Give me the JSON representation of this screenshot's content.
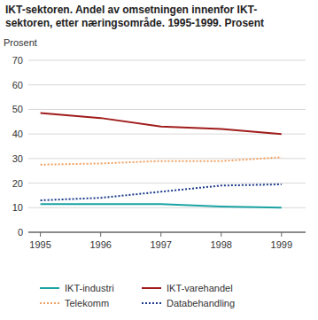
{
  "chart_data": {
    "type": "line",
    "title": "IKT-sektoren. Andel av omsetningen innenfor IKT-sektoren, etter næringsområde. 1995-1999. Prosent",
    "y_label": "Prosent",
    "x": [
      1995,
      1996,
      1997,
      1998,
      1999
    ],
    "xlim": [
      1994.8,
      1999.4
    ],
    "xticks": [
      1995,
      1996,
      1997,
      1998,
      1999
    ],
    "ylim": [
      0,
      70
    ],
    "yticks": [
      0,
      10,
      20,
      30,
      40,
      50,
      60,
      70
    ],
    "grid": true,
    "legend": "bottom",
    "series": [
      {
        "name": "IKT-industri",
        "color": "#1aa3a3",
        "line_style": "solid",
        "values": [
          11.5,
          11.5,
          11.5,
          10.5,
          10
        ]
      },
      {
        "name": "IKT-varehandel",
        "color": "#a01c1c",
        "line_style": "solid",
        "values": [
          48.5,
          46.5,
          43,
          42,
          40
        ]
      },
      {
        "name": "Telekomm",
        "color": "#f0a060",
        "line_style": "dotted",
        "values": [
          27.5,
          28,
          29,
          29,
          30.5
        ]
      },
      {
        "name": "Databehandling",
        "color": "#1a3a8a",
        "line_style": "dotted",
        "values": [
          13,
          14,
          16.5,
          19,
          19.5
        ]
      }
    ]
  }
}
